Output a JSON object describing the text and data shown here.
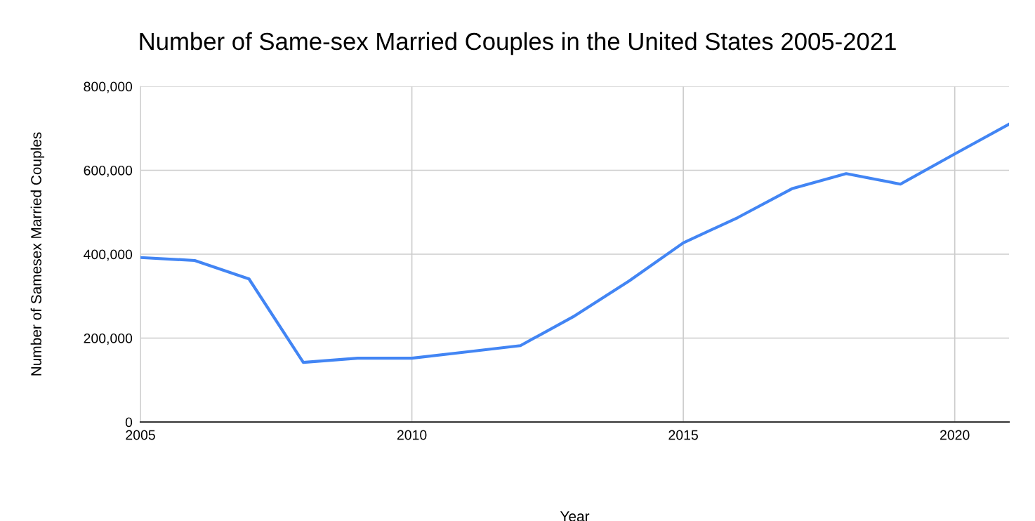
{
  "chart_data": {
    "type": "line",
    "title": "Number of Same-sex Married Couples in the United States 2005-2021",
    "xlabel": "Year",
    "ylabel": "Number of Samesex Married Couples",
    "x": [
      2005,
      2006,
      2007,
      2008,
      2009,
      2010,
      2011,
      2012,
      2013,
      2014,
      2015,
      2016,
      2017,
      2018,
      2019,
      2020,
      2021
    ],
    "series": [
      {
        "color": "#4285f4",
        "values": [
          392000,
          385000,
          341000,
          142000,
          152000,
          152000,
          167000,
          182000,
          253000,
          336000,
          427000,
          487000,
          556000,
          592000,
          567000,
          639000,
          710000
        ]
      }
    ],
    "xlim": [
      2005,
      2021
    ],
    "xticks": [
      2005,
      2010,
      2015,
      2020
    ],
    "ylim": [
      0,
      800000
    ],
    "yticks": [
      0,
      {
        "value": 200000,
        "label": "200,000"
      },
      {
        "value": 400000,
        "label": "400,000"
      },
      {
        "value": 600000,
        "label": "600,000"
      },
      {
        "value": 800000,
        "label": "800,000"
      }
    ],
    "grid": true,
    "marker": "none",
    "line_style": "solid"
  }
}
